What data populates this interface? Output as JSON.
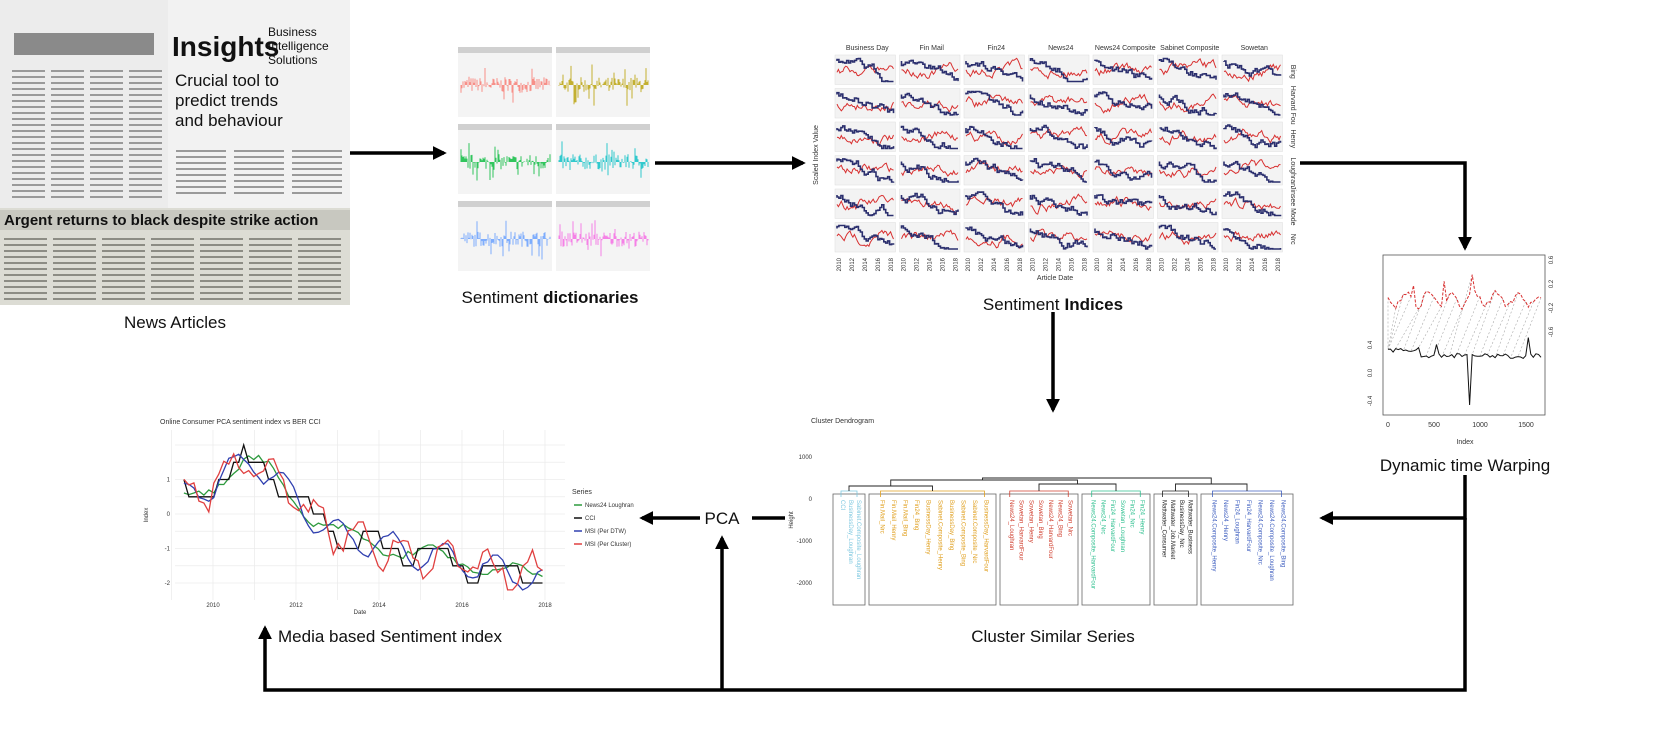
{
  "nodes": [
    {
      "label": "News Articles"
    },
    {
      "label": "Sentiment",
      "label_bold": "dictionaries"
    },
    {
      "label": "Sentiment",
      "label_bold": "Indices"
    },
    {
      "label": "Dynamic time Warping"
    },
    {
      "label": "Cluster Similar Series"
    },
    {
      "label": "Media based Sentiment index"
    },
    {
      "label": "PCA"
    }
  ],
  "news": {
    "headlines": [
      "Insights",
      "Business Intelligence Solutions",
      "Crucial tool to predict trends and behaviour",
      "Argent returns to black despite strike action"
    ]
  },
  "indices": {
    "columns": [
      "Business Day",
      "Fin Mail",
      "Fin24",
      "News24",
      "News24 Composite",
      "Sabinet Composite",
      "Sowetan"
    ],
    "rows": [
      "Bing",
      "Harvard Fou",
      "Henry",
      "Loughran",
      "Jinsee Mode",
      "Nrc"
    ],
    "years": [
      "2010",
      "2012",
      "2014",
      "2016",
      "2018"
    ],
    "y_label": "Scaled Index Value",
    "x_label": "Article Date"
  },
  "dtw": {
    "x_label": "Index",
    "xticks": [
      "0",
      "500",
      "1000",
      "1500"
    ],
    "left_ticks": [
      "0.4",
      "0.0",
      "-0.4"
    ],
    "right_ticks": [
      "0.6",
      "0.2",
      "-0.2",
      "-0.6"
    ]
  },
  "dendrogram": {
    "title": "Cluster Dendrogram",
    "y_label": "Height",
    "yticks": [
      "1000",
      "0",
      "-1000",
      "-2000"
    ],
    "clusters": [
      {
        "color": "#7fc8e0",
        "leaves": [
          "CCI",
          "BusinessDay_Loughran",
          "Sabinet.Composite_Loughran"
        ]
      },
      {
        "color": "#e0a020",
        "leaves": [
          "Fin.Mail_Nrc",
          "Fin.Mail_Henry",
          "Fin.Mail_Bing",
          "Fin24_Bing",
          "BusinessDay_Henry",
          "Sabinet.Composite_Henry",
          "BusinessDay_Bing",
          "Sabinet.Composite_Bing",
          "Sabinet.Composite_Nrc",
          "BusinessDay_HarvardFour"
        ]
      },
      {
        "color": "#d04030",
        "leaves": [
          "News24_Loughran",
          "Sowetan_HarvardFour",
          "Sowetan_Henry",
          "Sowetan_Bing",
          "News24_HarvardFour",
          "News24_Bing",
          "Sowetan_Nrc"
        ]
      },
      {
        "color": "#30c090",
        "leaves": [
          "News24.Composite_HarvardFour",
          "News24_Nrc",
          "Fin24_HarvardFour",
          "Sowetan_Loughran",
          "Fin24_Nrc",
          "Fin24_Henry"
        ]
      },
      {
        "color": "#222222",
        "leaves": [
          "Mattwater_Consumer",
          "Mattwater_Job.Market",
          "BusinessDay_Nrc",
          "Mattwater_Business"
        ]
      },
      {
        "color": "#4060c0",
        "leaves": [
          "News24.Composite_Henry",
          "News24_Henry",
          "Fin24_Loughran",
          "Fin24_HarvardFour",
          "News24.Composite_Nrc",
          "News24.Composite_Loughran",
          "News24.Composite_Bing"
        ]
      }
    ]
  },
  "msi_chart": {
    "title": "Online Consumer PCA sentiment index vs BER CCI",
    "x_label": "Date",
    "y_label": "Index",
    "xticks": [
      "2010",
      "2012",
      "2014",
      "2016",
      "2018"
    ],
    "yticks": [
      "1",
      "0",
      "-1",
      "-2"
    ],
    "legend_title": "Series",
    "series": [
      {
        "name": "News24 Loughran",
        "color": "#2e9a3e"
      },
      {
        "name": "CCI",
        "color": "#111111"
      },
      {
        "name": "MSI (Per DTW)",
        "color": "#3040b0"
      },
      {
        "name": "MSI (Per Cluster)",
        "color": "#e04040"
      }
    ]
  }
}
